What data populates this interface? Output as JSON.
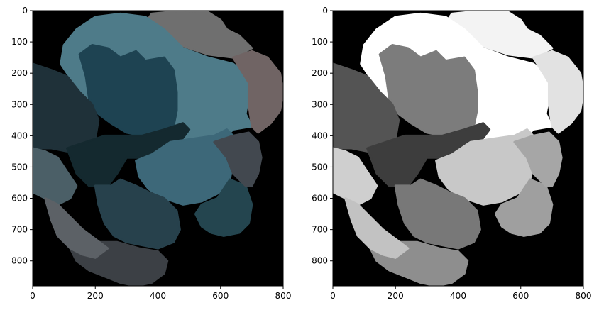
{
  "chart_data": [
    {
      "type": "image",
      "panel": "left",
      "colormap": "color-segmentation",
      "xlim": [
        0,
        800
      ],
      "ylim": [
        880,
        0
      ],
      "xticks": [
        0,
        200,
        400,
        600,
        800
      ],
      "yticks": [
        0,
        100,
        200,
        300,
        400,
        500,
        600,
        700,
        800
      ],
      "grid": false,
      "background_color": "#000000",
      "region_colors": [
        "#6f6f6f",
        "#4e7b89",
        "#1e4352",
        "#1f3139",
        "#14292f",
        "#3d6879",
        "#4b5f67",
        "#27414c",
        "#24454f",
        "#3c4045",
        "#42484f",
        "#706464",
        "#5c6166"
      ]
    },
    {
      "type": "image",
      "panel": "right",
      "colormap": "grayscale",
      "xlim": [
        0,
        800
      ],
      "ylim": [
        880,
        0
      ],
      "xticks": [
        0,
        200,
        400,
        600,
        800
      ],
      "yticks": [
        0,
        100,
        200,
        300,
        400,
        500,
        600,
        700,
        800
      ],
      "grid": false,
      "background_color": "#000000",
      "region_colors": [
        "#f3f3f3",
        "#ffffff",
        "#7c7c7c",
        "#545454",
        "#3d3d3d",
        "#c8c8c8",
        "#cfcfcf",
        "#787878",
        "#9f9f9f",
        "#8e8e8e",
        "#a6a6a6",
        "#e2e2e2",
        "#c2c2c2"
      ]
    }
  ]
}
